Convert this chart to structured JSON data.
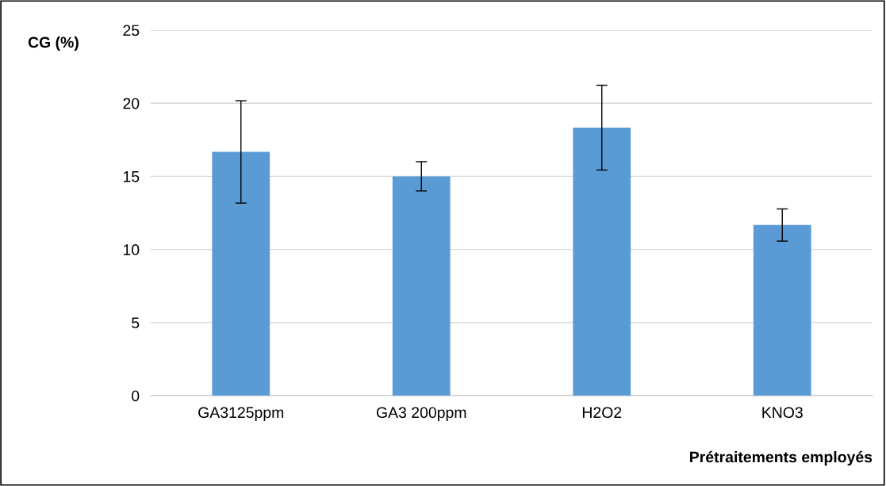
{
  "chart_data": {
    "type": "bar",
    "ylabel": "CG (%)",
    "xlabel": "Prétraitements employés",
    "categories": [
      "GA3125ppm",
      "GA3 200ppm",
      "H2O2",
      "KNO3"
    ],
    "values": [
      16.67,
      15.0,
      18.33,
      11.67
    ],
    "errors": [
      3.5,
      1.0,
      2.9,
      1.1
    ],
    "color": "#5b9bd5",
    "ylim": [
      0,
      25
    ],
    "yticks": [
      0,
      5,
      10,
      15,
      20,
      25
    ],
    "grid": "y"
  }
}
